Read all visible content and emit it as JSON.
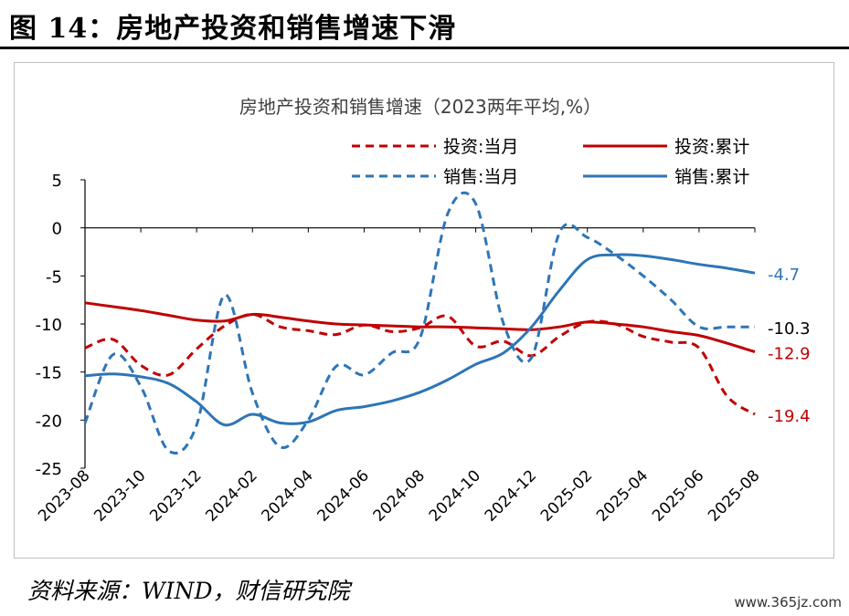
{
  "figure": {
    "title": "图 14：房地产投资和销售增速下滑",
    "source": "资料来源：WIND，财信研究院",
    "watermark": "www.365jz.com"
  },
  "chart_data": {
    "type": "line",
    "title": "房地产投资和销售增速（2023两年平均,%）",
    "x": [
      "2023-08",
      "2023-09",
      "2023-10",
      "2023-11",
      "2023-12",
      "2024-01",
      "2024-02",
      "2024-03",
      "2024-04",
      "2024-05",
      "2024-06",
      "2024-07",
      "2024-08",
      "2024-09",
      "2024-10",
      "2024-11",
      "2024-12",
      "2025-01",
      "2025-02",
      "2025-03",
      "2025-04",
      "2025-05",
      "2025-06",
      "2025-07",
      "2025-08"
    ],
    "x_tick_labels": [
      "2023-08",
      "2023-10",
      "2023-12",
      "2024-02",
      "2024-04",
      "2024-06",
      "2024-08",
      "2024-10",
      "2024-12",
      "2025-02",
      "2025-04",
      "2025-06",
      "2025-08"
    ],
    "ylim": [
      -25,
      5
    ],
    "y_ticks": [
      5,
      0,
      -5,
      -10,
      -15,
      -20,
      -25
    ],
    "grid": false,
    "legend_position": "top",
    "series": [
      {
        "name": "投资:当月",
        "color": "#c00000",
        "dash": true,
        "values": [
          -12.5,
          -11.6,
          -14.3,
          -15.3,
          -12.6,
          -10.2,
          -9.0,
          -10.3,
          -10.7,
          -11.1,
          -10.1,
          -10.8,
          -10.4,
          -9.2,
          -12.3,
          -11.8,
          -13.3,
          -11.3,
          -9.8,
          -10.0,
          -11.3,
          -11.9,
          -12.5,
          -17.5,
          -19.4
        ]
      },
      {
        "name": "投资:累计",
        "color": "#c00000",
        "dash": false,
        "values": [
          -7.8,
          -8.2,
          -8.6,
          -9.1,
          -9.6,
          -9.7,
          -9.0,
          -9.3,
          -9.7,
          -10.0,
          -10.1,
          -10.2,
          -10.3,
          -10.3,
          -10.4,
          -10.5,
          -10.6,
          -10.3,
          -9.8,
          -10.0,
          -10.3,
          -10.8,
          -11.2,
          -12.0,
          -12.9
        ]
      },
      {
        "name": "销售:当月",
        "color": "#2e75b6",
        "dash": true,
        "values": [
          -20.3,
          -13.2,
          -16.5,
          -23.2,
          -20.5,
          -7.0,
          -17.2,
          -22.8,
          -20.0,
          -14.4,
          -15.3,
          -13.0,
          -11.5,
          1.5,
          2.5,
          -10.0,
          -13.5,
          -0.5,
          -1.0,
          -2.8,
          -5.0,
          -7.5,
          -10.3,
          -10.3,
          -10.3
        ]
      },
      {
        "name": "销售:累计",
        "color": "#2e75b6",
        "dash": false,
        "values": [
          -15.4,
          -15.2,
          -15.5,
          -16.2,
          -18.1,
          -20.5,
          -19.4,
          -20.3,
          -20.2,
          -19.0,
          -18.6,
          -18.0,
          -17.1,
          -15.8,
          -14.2,
          -13.0,
          -10.3,
          -6.5,
          -3.3,
          -2.8,
          -2.9,
          -3.3,
          -3.8,
          -4.2,
          -4.7
        ]
      }
    ],
    "end_labels": [
      {
        "text": "-4.7",
        "color": "#2e75b6"
      },
      {
        "text": "-10.3",
        "color": "#000000"
      },
      {
        "text": "-12.9",
        "color": "#c00000"
      },
      {
        "text": "-19.4",
        "color": "#c00000"
      }
    ]
  }
}
